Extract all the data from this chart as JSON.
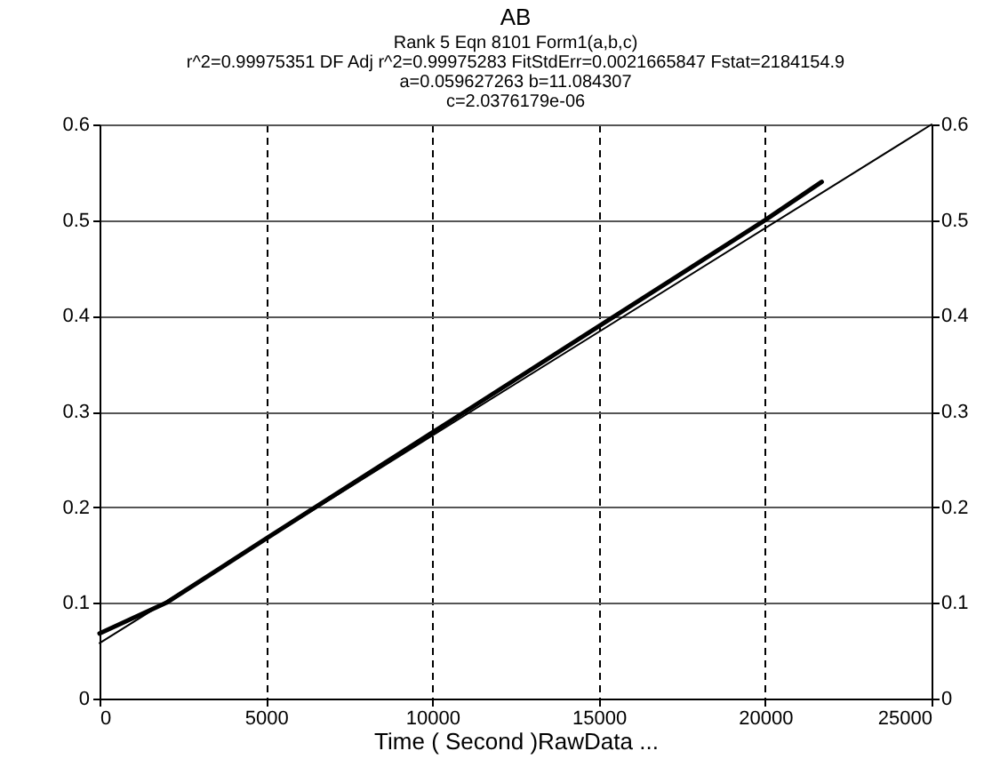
{
  "chart_data": {
    "type": "line",
    "title": "AB",
    "subtitle": "Rank 5  Eqn 8101  Form1(a,b,c)",
    "annotations": [
      "r^2=0.99975351  DF Adj r^2=0.99975283  FitStdErr=0.0021665847  Fstat=2184154.9",
      "a=0.059627263 b=11.084307",
      "c=2.0376179e-06"
    ],
    "xlabel": "Time ( Second )RawData ...",
    "series": [
      {
        "color": "#000000",
        "x": [
          0,
          2000,
          5000,
          10000,
          15000,
          20000,
          21700
        ],
        "values": [
          0.068,
          0.1,
          0.167,
          0.278,
          0.389,
          0.5,
          0.54
        ]
      },
      {
        "color": "#000000",
        "x": [
          0,
          25000
        ],
        "values": [
          0.058,
          0.6
        ]
      }
    ],
    "xlim": [
      0,
      25000
    ],
    "xticks": [
      0,
      5000,
      10000,
      15000,
      20000,
      25000
    ],
    "ylim": [
      0,
      0.6
    ],
    "yticks": [
      0,
      0.1,
      0.2,
      0.3,
      0.4,
      0.5,
      0.6
    ],
    "y2lim": [
      0,
      0.6
    ],
    "y2ticks": [
      0,
      0.1,
      0.2,
      0.3,
      0.4,
      0.5,
      0.6
    ],
    "grid": true
  }
}
